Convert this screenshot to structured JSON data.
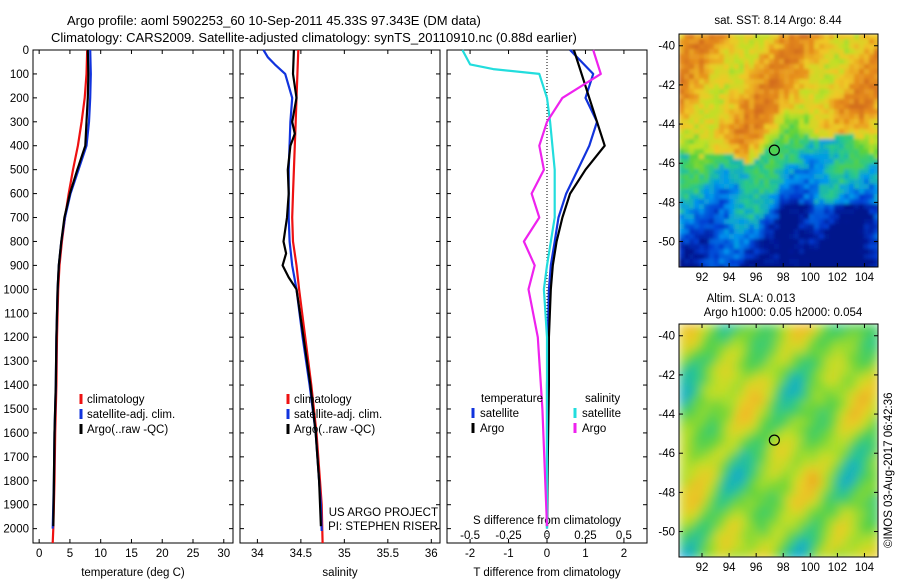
{
  "header": {
    "line1": "Argo profile: aoml 5902253_60 10-Sep-2011 45.33S 97.343E (DM data)",
    "line2": "Climatology: CARS2009. Satellite-adjusted climatology: synTS_20110910.nc (0.88d earlier)"
  },
  "side_text": "©IMOS 03-Aug-2017 06:42:36",
  "colors": {
    "climatology": "#ee1111",
    "satellite_clim": "#1133dd",
    "argo": "#000000",
    "sat_salinity": "#22dddd",
    "argo_salinity_diff": "#ee22ee"
  },
  "chart_data": [
    {
      "type": "line",
      "name": "temperature-profile",
      "xlabel": "temperature (deg C)",
      "xlim": [
        -1,
        31.5
      ],
      "xticks": [
        0,
        5,
        10,
        15,
        20,
        25,
        30
      ],
      "xtick_labels": [
        "0",
        "5",
        "10",
        "15",
        "20",
        "25",
        "30"
      ],
      "ylim": [
        0,
        2060
      ],
      "yticks": [
        0,
        100,
        200,
        300,
        400,
        500,
        600,
        700,
        800,
        900,
        1000,
        1100,
        1200,
        1300,
        1400,
        1500,
        1600,
        1700,
        1800,
        1900,
        2000
      ],
      "y_reversed": true,
      "legend": [
        "climatology",
        "satellite-adj. clim.",
        "Argo(..raw -QC)"
      ],
      "series": [
        {
          "name": "climatology",
          "color": "#ee1111",
          "x": [
            7.8,
            7.7,
            7.4,
            6.9,
            6.3,
            5.5,
            4.8,
            4.2,
            3.7,
            3.3,
            3.1,
            2.9,
            2.8,
            2.6,
            2.5,
            2.4,
            2.3,
            2.2
          ],
          "y": [
            0,
            100,
            200,
            300,
            400,
            500,
            600,
            700,
            800,
            900,
            1000,
            1200,
            1400,
            1600,
            1800,
            1900,
            2000,
            2060
          ]
        },
        {
          "name": "satellite-adj. clim.",
          "color": "#1133dd",
          "x": [
            8.3,
            8.4,
            8.3,
            8.1,
            7.7,
            6.4,
            5.1,
            4.2,
            3.6,
            3.2,
            3.0,
            2.8,
            2.7,
            2.5,
            2.4,
            2.3,
            2.2
          ],
          "y": [
            0,
            100,
            200,
            300,
            400,
            500,
            600,
            700,
            800,
            900,
            1000,
            1200,
            1400,
            1600,
            1800,
            1900,
            2000
          ]
        },
        {
          "name": "Argo(..raw -QC)",
          "color": "#000000",
          "x": [
            7.9,
            8.0,
            7.9,
            7.7,
            7.5,
            6.2,
            5.0,
            4.1,
            3.6,
            3.2,
            3.0,
            2.8,
            2.7,
            2.5,
            2.4,
            2.3
          ],
          "y": [
            0,
            100,
            200,
            300,
            400,
            500,
            600,
            700,
            800,
            900,
            1000,
            1200,
            1400,
            1600,
            1800,
            1990
          ]
        }
      ]
    },
    {
      "type": "line",
      "name": "salinity-profile",
      "xlabel": "salinity",
      "xlim": [
        33.8,
        36.1
      ],
      "xticks": [
        34,
        34.5,
        35,
        35.5,
        36
      ],
      "xtick_labels": [
        "34",
        "34.5",
        "35",
        "35.5",
        "36"
      ],
      "ylim": [
        0,
        2060
      ],
      "y_reversed": true,
      "legend": [
        "climatology",
        "satellite-adj. clim.",
        "Argo(..raw -QC)"
      ],
      "annotation": [
        "US ARGO PROJECT",
        "PI: STEPHEN RISER"
      ],
      "series": [
        {
          "name": "climatology",
          "color": "#ee1111",
          "x": [
            34.47,
            34.46,
            34.45,
            34.44,
            34.43,
            34.42,
            34.41,
            34.4,
            34.41,
            34.45,
            34.48,
            34.55,
            34.62,
            34.68,
            34.72,
            34.74,
            34.75
          ],
          "y": [
            0,
            100,
            200,
            300,
            400,
            500,
            600,
            700,
            800,
            900,
            1000,
            1200,
            1400,
            1600,
            1800,
            1900,
            2060
          ]
        },
        {
          "name": "satellite-adj. clim.",
          "color": "#1133dd",
          "x": [
            34.07,
            34.12,
            34.2,
            34.32,
            34.4,
            34.38,
            34.36,
            34.36,
            34.37,
            34.4,
            34.45,
            34.52,
            34.6,
            34.67,
            34.71,
            34.73,
            34.74
          ],
          "y": [
            0,
            30,
            60,
            100,
            200,
            300,
            500,
            700,
            800,
            900,
            1000,
            1200,
            1400,
            1600,
            1800,
            1900,
            2010
          ]
        },
        {
          "name": "Argo(..raw -QC)",
          "color": "#000000",
          "x": [
            34.42,
            34.41,
            34.45,
            34.4,
            34.43,
            34.38,
            34.35,
            34.36,
            34.34,
            34.3,
            34.33,
            34.29,
            34.36,
            34.45,
            34.53,
            34.61,
            34.67,
            34.71,
            34.73
          ],
          "y": [
            0,
            100,
            200,
            300,
            350,
            400,
            500,
            600,
            700,
            800,
            850,
            900,
            950,
            1000,
            1200,
            1400,
            1600,
            1800,
            1990
          ]
        }
      ]
    },
    {
      "type": "line",
      "name": "difference-profile",
      "xlabel": "T difference from climatology",
      "xlabel_top": "S difference from climatology",
      "xlim": [
        -2.6,
        2.6
      ],
      "xticks": [
        -2,
        -1,
        0,
        1,
        2
      ],
      "xtick_labels": [
        "-2",
        "-1",
        "0",
        "1",
        "2"
      ],
      "xticks_secondary": [
        -0.5,
        -0.25,
        0,
        0.25,
        0.5
      ],
      "xtick_labels_secondary": [
        "-0.5",
        "-0.25",
        "0",
        "0.25",
        "0.5"
      ],
      "ylim": [
        0,
        2060
      ],
      "y_reversed": true,
      "legend_headers": [
        "temperature",
        "salinity"
      ],
      "legend": [
        "satellite",
        "Argo",
        "satellite",
        "Argo"
      ],
      "series": [
        {
          "name": "satellite",
          "group": "temperature",
          "color": "#1133dd",
          "x": [
            0.6,
            1.2,
            1.0,
            1.3,
            1.1,
            0.8,
            0.5,
            0.3,
            0.2,
            0.1,
            0.05,
            0.02,
            0.0,
            0.0,
            0.0,
            0.0
          ],
          "y": [
            0,
            100,
            200,
            300,
            400,
            500,
            600,
            700,
            800,
            900,
            1000,
            1200,
            1400,
            1600,
            1800,
            2000
          ]
        },
        {
          "name": "Argo",
          "group": "temperature",
          "color": "#000000",
          "x": [
            0.7,
            0.9,
            1.1,
            1.3,
            1.5,
            1.0,
            0.6,
            0.4,
            0.25,
            0.15,
            0.1,
            0.05,
            0.05,
            0.02,
            0.0
          ],
          "y": [
            0,
            100,
            200,
            300,
            400,
            500,
            600,
            700,
            800,
            900,
            1000,
            1200,
            1400,
            1700,
            1990
          ]
        },
        {
          "name": "satellite",
          "group": "salinity",
          "color": "#22dddd",
          "x": [
            -0.55,
            -0.5,
            -0.35,
            -0.05,
            0.0,
            0.02,
            0.05,
            0.05,
            0.0,
            -0.02,
            0.0,
            0.0,
            0.0,
            0.0
          ],
          "y": [
            0,
            60,
            80,
            100,
            200,
            300,
            500,
            700,
            900,
            1000,
            1200,
            1400,
            1700,
            2000
          ]
        },
        {
          "name": "Argo",
          "group": "salinity",
          "color": "#ee22ee",
          "x": [
            0.3,
            0.35,
            0.1,
            0.0,
            -0.05,
            -0.02,
            -0.1,
            -0.05,
            -0.15,
            -0.08,
            -0.12,
            -0.06,
            -0.03,
            0.0
          ],
          "y": [
            0,
            100,
            200,
            300,
            400,
            500,
            600,
            700,
            800,
            900,
            1000,
            1200,
            1500,
            1990
          ]
        }
      ]
    },
    {
      "type": "heatmap",
      "name": "sst-map",
      "title": "sat. SST: 8.14 Argo: 8.44",
      "xlim": [
        90.3,
        105
      ],
      "ylim": [
        -51.3,
        -39.4
      ],
      "xticks": [
        92,
        94,
        96,
        98,
        100,
        102,
        104
      ],
      "yticks": [
        -40,
        -42,
        -44,
        -46,
        -48,
        -50
      ],
      "xtick_labels": [
        "92",
        "94",
        "96",
        "98",
        "100",
        "102",
        "104"
      ],
      "ytick_labels": [
        "-40",
        "-42",
        "-44",
        "-46",
        "-48",
        "-50"
      ],
      "marker": {
        "lon": 97.343,
        "lat": -45.33
      }
    },
    {
      "type": "heatmap",
      "name": "sla-map",
      "title": "Altim. SLA: 0.013",
      "subtitle": "Argo h1000: 0.05 h2000: 0.054",
      "xlim": [
        90.3,
        105
      ],
      "ylim": [
        -51.3,
        -39.4
      ],
      "xticks": [
        92,
        94,
        96,
        98,
        100,
        102,
        104
      ],
      "yticks": [
        -40,
        -42,
        -44,
        -46,
        -48,
        -50
      ],
      "xtick_labels": [
        "92",
        "94",
        "96",
        "98",
        "100",
        "102",
        "104"
      ],
      "ytick_labels": [
        "-40",
        "-42",
        "-44",
        "-46",
        "-48",
        "-50"
      ],
      "marker": {
        "lon": 97.343,
        "lat": -45.33
      }
    }
  ]
}
